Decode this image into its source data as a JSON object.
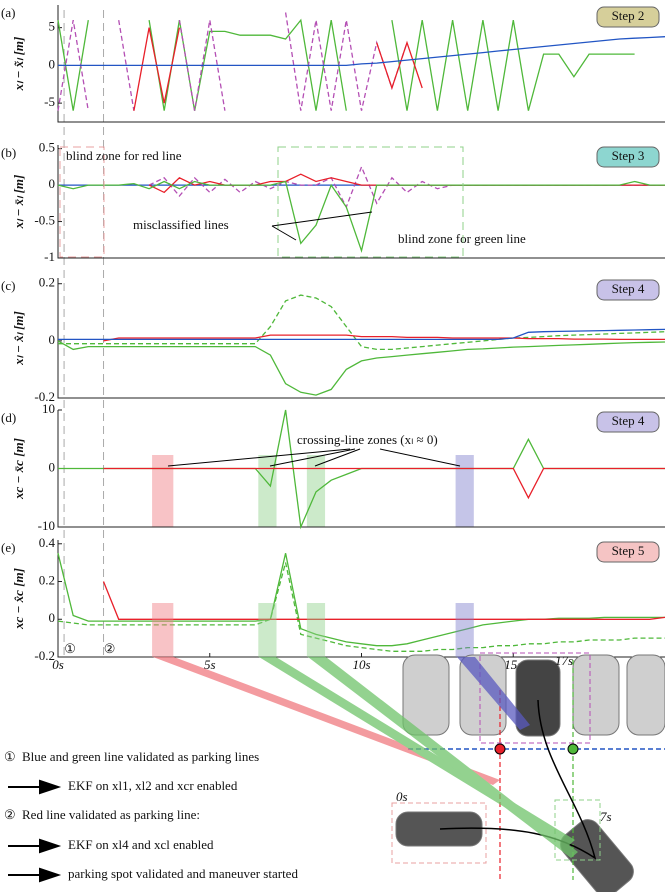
{
  "chart_data": [
    {
      "type": "line",
      "label": "(a)",
      "badge": "Step 2",
      "badge_color": "#d6cf9a",
      "ylabel": "xₗ − x̃ₗ [m]",
      "xlim": [
        0,
        20
      ],
      "ylim": [
        -7.5,
        8
      ],
      "yticks": [
        -5,
        0,
        5
      ],
      "x": [
        0,
        0.5,
        1,
        1.5,
        2,
        2.5,
        3,
        3.5,
        4,
        4.5,
        5,
        5.5,
        6,
        6.5,
        7,
        7.5,
        8,
        8.5,
        9,
        9.5,
        10,
        10.5,
        11,
        11.5,
        12,
        12.5,
        13,
        13.5,
        14,
        14.5,
        15,
        15.5,
        16,
        16.5,
        17,
        17.5,
        18,
        18.5,
        19,
        19.5,
        20
      ],
      "series": [
        {
          "color": "#4fb83a",
          "dash": false,
          "values": [
            6,
            -6,
            6,
            null,
            null,
            null,
            6,
            -6,
            6,
            -6,
            4.5,
            4.5,
            4,
            4,
            4,
            3.5,
            6,
            -6,
            6,
            -6,
            null,
            null,
            6,
            -6,
            6,
            -6,
            6,
            -6,
            6,
            -6,
            6,
            -6,
            1.5,
            1.5,
            -1.5,
            1.5,
            1.5,
            1.5,
            1.5,
            null,
            null
          ]
        },
        {
          "color": "#b44fb4",
          "dash": true,
          "values": [
            -6,
            6,
            -6,
            null,
            6,
            -6,
            null,
            null,
            6,
            -6,
            6,
            -6,
            null,
            null,
            null,
            7,
            -6,
            6,
            -6,
            6,
            -6,
            3,
            -3,
            3,
            null,
            null,
            null,
            null,
            null,
            null,
            null,
            null,
            null,
            null,
            null,
            null,
            null,
            null,
            null,
            null,
            null
          ]
        },
        {
          "color": "#e8202a",
          "dash": false,
          "values": [
            null,
            null,
            null,
            null,
            null,
            -6,
            5,
            -5,
            5,
            null,
            null,
            null,
            null,
            null,
            null,
            null,
            null,
            null,
            null,
            null,
            null,
            3,
            -3,
            3,
            -3,
            null,
            null,
            null,
            null,
            null,
            null,
            null,
            null,
            null,
            null,
            null,
            null,
            null,
            null,
            null,
            null
          ]
        },
        {
          "color": "#2255c4",
          "dash": false,
          "values": [
            0,
            0,
            0,
            0,
            0,
            0,
            0,
            0,
            0,
            0,
            0,
            0,
            0,
            0,
            0,
            0,
            0,
            0,
            0,
            0,
            0.2,
            0.3,
            0.5,
            0.7,
            0.9,
            1.1,
            1.3,
            1.5,
            1.7,
            1.9,
            2.1,
            2.3,
            2.5,
            2.7,
            2.9,
            3.1,
            3.3,
            3.5,
            3.6,
            3.7,
            3.8
          ]
        }
      ]
    },
    {
      "type": "line",
      "label": "(b)",
      "badge": "Step 3",
      "badge_color": "#8dd6d0",
      "ylabel": "xₗ − x̄ₗ [m]",
      "xlim": [
        0,
        20
      ],
      "ylim": [
        -1,
        0.55
      ],
      "yticks": [
        0.5,
        0,
        -0.5,
        -1
      ],
      "annotations": [
        "blind zone for red line",
        "misclassified lines",
        "blind zone for green line"
      ],
      "x": [
        0,
        0.5,
        1,
        1.5,
        2,
        2.5,
        3,
        3.5,
        4,
        4.5,
        5,
        5.5,
        6,
        6.5,
        7,
        7.5,
        8,
        8.5,
        9,
        9.5,
        10,
        10.5,
        11,
        11.5,
        12,
        12.5,
        13,
        13.5,
        14,
        14.5,
        15,
        15.5,
        16,
        16.5,
        17,
        17.5,
        18,
        18.5,
        19,
        19.5,
        20
      ],
      "series": [
        {
          "color": "#2255c4",
          "dash": false,
          "values": [
            0,
            0,
            0,
            0,
            0,
            0,
            0,
            0,
            0,
            0,
            0,
            0,
            0,
            0,
            0,
            0,
            0,
            0,
            0,
            0,
            0,
            0,
            0,
            0,
            0,
            0,
            0,
            0,
            0,
            0,
            0,
            0,
            0,
            0,
            0,
            0,
            0,
            0,
            0,
            0,
            0
          ]
        },
        {
          "color": "#b44fb4",
          "dash": true,
          "values": [
            null,
            null,
            null,
            null,
            null,
            null,
            0,
            0.1,
            -0.15,
            0.1,
            -0.1,
            0.08,
            -0.1,
            0.05,
            -0.05,
            0.05,
            0,
            0,
            0.1,
            -0.3,
            0.25,
            -0.25,
            0.1,
            -0.1,
            0.05,
            -0.05,
            0,
            0,
            0,
            0,
            0,
            0,
            0,
            0,
            0,
            0,
            0,
            0,
            0,
            0,
            0
          ]
        },
        {
          "color": "#e8202a",
          "dash": false,
          "values": [
            null,
            null,
            null,
            null,
            null,
            null,
            0,
            -0.1,
            0.1,
            0,
            0.05,
            0,
            0,
            0,
            0.05,
            0.05,
            0.15,
            0.05,
            0.1,
            0.05,
            0,
            0,
            0,
            0,
            0,
            0,
            0,
            0,
            0,
            0,
            0,
            0,
            0,
            0,
            0,
            0,
            0,
            0,
            0,
            0,
            0
          ]
        },
        {
          "color": "#4fb83a",
          "dash": false,
          "values": [
            0,
            -0.05,
            0,
            0,
            0,
            0.02,
            -0.05,
            0.05,
            -0.05,
            0.05,
            0,
            0,
            0,
            0,
            0,
            0.05,
            -0.8,
            -0.55,
            0,
            -0.3,
            -0.9,
            0,
            0,
            0,
            0,
            0,
            0,
            0,
            0,
            0,
            0,
            0,
            0,
            0,
            0,
            0,
            0,
            0,
            0.05,
            0,
            0
          ]
        }
      ]
    },
    {
      "type": "line",
      "label": "(c)",
      "badge": "Step 4",
      "badge_color": "#c8c2e8",
      "ylabel": "xₗ − x̂ₗ [m]",
      "xlim": [
        0,
        20
      ],
      "ylim": [
        -0.2,
        0.22
      ],
      "yticks": [
        0.2,
        0,
        -0.2
      ],
      "x": [
        0,
        0.5,
        1,
        1.5,
        2,
        2.5,
        3,
        3.5,
        4,
        4.5,
        5,
        5.5,
        6,
        6.5,
        7,
        7.5,
        8,
        8.5,
        9,
        9.5,
        10,
        10.5,
        11,
        11.5,
        12,
        12.5,
        13,
        13.5,
        14,
        14.5,
        15,
        15.5,
        16,
        16.5,
        17,
        17.5,
        18,
        18.5,
        19,
        19.5,
        20
      ],
      "series": [
        {
          "color": "#4fb83a",
          "dash": false,
          "values": [
            0,
            -0.03,
            -0.02,
            -0.02,
            -0.02,
            -0.02,
            -0.02,
            -0.02,
            -0.02,
            -0.02,
            -0.02,
            -0.02,
            -0.02,
            -0.02,
            -0.05,
            -0.15,
            -0.18,
            -0.19,
            -0.17,
            -0.1,
            -0.07,
            -0.06,
            -0.055,
            -0.05,
            -0.045,
            -0.04,
            -0.035,
            -0.03,
            -0.028,
            -0.025,
            -0.022,
            -0.02,
            -0.018,
            -0.016,
            -0.014,
            -0.012,
            -0.01,
            -0.008,
            -0.006,
            -0.005,
            -0.004
          ]
        },
        {
          "color": "#4fb83a",
          "dash": true,
          "values": [
            -0.01,
            -0.01,
            -0.01,
            -0.01,
            -0.01,
            -0.01,
            -0.01,
            -0.01,
            -0.01,
            -0.01,
            -0.01,
            -0.01,
            -0.01,
            -0.01,
            0.05,
            0.14,
            0.16,
            0.15,
            0.12,
            0.05,
            -0.02,
            -0.03,
            -0.03,
            -0.025,
            -0.02,
            -0.015,
            -0.01,
            -0.005,
            0,
            0.005,
            0.01,
            0.012,
            0.015,
            0.018,
            0.02,
            0.022,
            0.024,
            0.026,
            0.028,
            0.03,
            0.032
          ]
        },
        {
          "color": "#e8202a",
          "dash": false,
          "values": [
            null,
            null,
            null,
            0,
            0.01,
            0.01,
            0.01,
            0.01,
            0.01,
            0.01,
            0.01,
            0.01,
            0.01,
            0.01,
            0.02,
            0.02,
            0.02,
            0.02,
            0.02,
            0.02,
            0.015,
            0.015,
            0.015,
            0.012,
            0.012,
            0.012,
            0.01,
            0.01,
            0.01,
            0.01,
            0.01,
            0.008,
            0.008,
            0.008,
            0.006,
            0.006,
            0.006,
            0.005,
            0.005,
            0.005,
            0.005
          ]
        },
        {
          "color": "#2255c4",
          "dash": false,
          "values": [
            0.005,
            0.005,
            0.005,
            0.005,
            0.005,
            0.005,
            0.005,
            0.005,
            0.005,
            0.005,
            0.005,
            0.005,
            0.005,
            0.005,
            0.005,
            0.005,
            0.005,
            0.005,
            0.005,
            0.005,
            0.005,
            0.005,
            0.005,
            0.005,
            0.005,
            0.005,
            0.005,
            0.005,
            0.005,
            0.005,
            0.01,
            0.03,
            0.032,
            0.033,
            0.034,
            0.035,
            0.036,
            0.037,
            0.038,
            0.039,
            0.04
          ]
        }
      ]
    },
    {
      "type": "line",
      "label": "(d)",
      "badge": "Step 4",
      "badge_color": "#c8c2e8",
      "ylabel": "xc − x̄c [m]",
      "xlim": [
        0,
        20
      ],
      "ylim": [
        -10,
        10
      ],
      "yticks": [
        10,
        0,
        -10
      ],
      "annotations": [
        "crossing-line zones (xₗ ≈ 0)"
      ],
      "zones": [
        {
          "start": 3.1,
          "end": 3.8,
          "color": "#f07a80"
        },
        {
          "start": 6.6,
          "end": 7.2,
          "color": "#8fd08a"
        },
        {
          "start": 8.2,
          "end": 8.8,
          "color": "#8fd08a"
        },
        {
          "start": 13.1,
          "end": 13.7,
          "color": "#7f7fcc"
        }
      ],
      "x": [
        0,
        0.5,
        1,
        1.5,
        2,
        2.5,
        3,
        3.5,
        4,
        4.5,
        5,
        5.5,
        6,
        6.5,
        7,
        7.5,
        8,
        8.5,
        9,
        9.5,
        10,
        10.5,
        11,
        11.5,
        12,
        12.5,
        13,
        13.5,
        14,
        14.5,
        15,
        15.5,
        16,
        16.5,
        17,
        17.5,
        18,
        18.5,
        19,
        19.5,
        20
      ],
      "series": [
        {
          "color": "#4fb83a",
          "dash": false,
          "values": [
            0,
            0,
            0,
            0,
            0,
            0,
            0,
            0,
            0,
            0,
            0,
            0,
            0,
            0,
            -3,
            10,
            -10,
            -4,
            -2,
            -1,
            0,
            0,
            0,
            0,
            0,
            0,
            0,
            0,
            0,
            0,
            0,
            5,
            0,
            0,
            0,
            0,
            0,
            0,
            0,
            0,
            0
          ]
        },
        {
          "color": "#e8202a",
          "dash": false,
          "values": [
            null,
            null,
            null,
            0,
            0,
            0,
            0,
            0,
            0,
            0,
            0,
            0,
            0,
            0,
            0,
            0,
            0,
            0,
            0,
            0,
            0,
            0,
            0,
            0,
            0,
            0,
            0,
            0,
            0,
            0,
            0,
            -5,
            0,
            0,
            0,
            0,
            0,
            0,
            0,
            0,
            0
          ]
        }
      ]
    },
    {
      "type": "line",
      "label": "(e)",
      "badge": "Step 5",
      "badge_color": "#f5c4c4",
      "ylabel": "xc − x̂c [m]",
      "xlim": [
        0,
        20
      ],
      "ylim": [
        -0.2,
        0.42
      ],
      "yticks": [
        0.4,
        0.2,
        0,
        -0.2
      ],
      "xticks": [
        {
          "value": 0,
          "label": "0s"
        },
        {
          "value": 5,
          "label": "5s"
        },
        {
          "value": 10,
          "label": "10s"
        },
        {
          "value": 15,
          "label": "15s"
        }
      ],
      "markers": [
        {
          "x": 0.2,
          "label": "①"
        },
        {
          "x": 1.5,
          "label": "②"
        }
      ],
      "x": [
        0,
        0.5,
        1,
        1.5,
        2,
        2.5,
        3,
        3.5,
        4,
        4.5,
        5,
        5.5,
        6,
        6.5,
        7,
        7.5,
        8,
        8.5,
        9,
        9.5,
        10,
        10.5,
        11,
        11.5,
        12,
        12.5,
        13,
        13.5,
        14,
        14.5,
        15,
        15.5,
        16,
        16.5,
        17,
        17.5,
        18,
        18.5,
        19,
        19.5,
        20
      ],
      "series": [
        {
          "color": "#4fb83a",
          "dash": false,
          "values": [
            0.35,
            0.02,
            -0.01,
            -0.01,
            -0.01,
            -0.01,
            -0.01,
            -0.01,
            -0.01,
            -0.01,
            -0.01,
            -0.01,
            -0.01,
            -0.01,
            0,
            0.35,
            -0.05,
            -0.08,
            -0.1,
            -0.12,
            -0.13,
            -0.14,
            -0.14,
            -0.13,
            -0.11,
            -0.09,
            -0.07,
            -0.05,
            -0.03,
            -0.02,
            -0.01,
            0,
            0,
            0.005,
            0.005,
            0.005,
            0.01,
            0.01,
            0.01,
            0.01,
            0.01
          ]
        },
        {
          "color": "#4fb83a",
          "dash": true,
          "values": [
            -0.01,
            -0.02,
            -0.03,
            -0.03,
            -0.03,
            -0.03,
            -0.03,
            -0.03,
            -0.03,
            -0.03,
            -0.03,
            -0.03,
            -0.03,
            -0.03,
            0,
            0.3,
            -0.08,
            -0.1,
            -0.12,
            -0.14,
            -0.15,
            -0.16,
            -0.17,
            -0.17,
            -0.17,
            -0.16,
            -0.16,
            -0.15,
            -0.15,
            -0.14,
            -0.14,
            -0.13,
            -0.13,
            -0.12,
            -0.12,
            -0.11,
            -0.11,
            -0.11,
            -0.1,
            -0.1,
            -0.1
          ]
        },
        {
          "color": "#e8202a",
          "dash": false,
          "values": [
            null,
            null,
            null,
            0.2,
            0,
            0,
            0,
            0,
            0,
            0,
            0,
            0,
            0,
            0,
            0,
            0,
            0,
            0,
            0,
            0,
            0,
            0,
            0,
            0,
            0,
            0,
            0,
            0,
            0,
            0,
            0,
            0,
            0,
            0,
            0,
            0,
            0,
            0,
            0,
            0,
            0.01
          ]
        }
      ]
    }
  ],
  "notes": [
    {
      "marker": "①",
      "text": "Blue and green line validated as parking lines"
    },
    {
      "text": "EKF on xl1, xl2 and xcr enabled"
    },
    {
      "marker": "②",
      "text": "Red line validated as parking line:"
    },
    {
      "text": "EKF on xl4 and xcl enabled"
    },
    {
      "text": "parking spot validated and maneuver started"
    }
  ],
  "scene": {
    "times": [
      "0s",
      "7s",
      "17s"
    ]
  }
}
